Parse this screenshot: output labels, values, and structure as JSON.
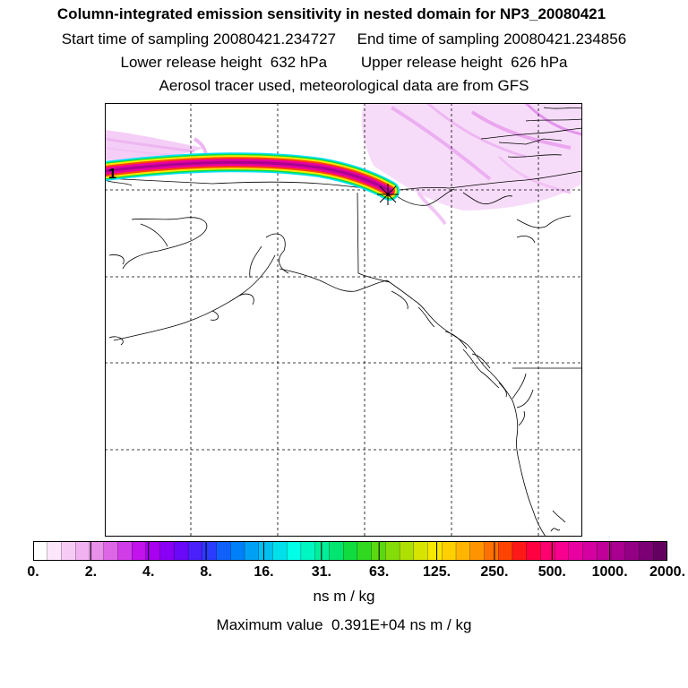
{
  "titles": {
    "line1": "Column-integrated emission sensitivity in nested domain for NP3_20080421",
    "line2": "Start time of sampling 20080421.234727     End time of sampling 20080421.234856",
    "line3": "Lower release height  632 hPa        Upper release height  626 hPa",
    "line4": "Aerosol tracer used, meteorological data are from GFS"
  },
  "map": {
    "label": "1",
    "release_marker": "asterisk-icon"
  },
  "colorbar": {
    "tick_labels": [
      "0.",
      "2.",
      "4.",
      "8.",
      "16.",
      "31.",
      "63.",
      "125.",
      "250.",
      "500.",
      "1000.",
      "2000."
    ],
    "colors": [
      "#ffffff",
      "#fbe6fb",
      "#f6ccf6",
      "#f0b2f0",
      "#e890ea",
      "#dd66e6",
      "#d13ce9",
      "#c213ec",
      "#a800f0",
      "#8a00f5",
      "#6a08f8",
      "#4a20fb",
      "#2a3cfd",
      "#1060fc",
      "#0080f8",
      "#00a0f4",
      "#00c0f0",
      "#00e0ea",
      "#00ffe6",
      "#00f6c0",
      "#00ee9a",
      "#00e470",
      "#10dc40",
      "#30d820",
      "#5ad810",
      "#84dc08",
      "#aee004",
      "#d6e400",
      "#f8e800",
      "#ffd000",
      "#ffb400",
      "#ff9400",
      "#ff7000",
      "#ff4400",
      "#ff1818",
      "#ff0040",
      "#ff0070",
      "#f80090",
      "#e800a0",
      "#d400a0",
      "#c00098",
      "#aa0090",
      "#940084",
      "#7c0074",
      "#640060"
    ]
  },
  "units": "ns m / kg",
  "max_value": "Maximum value  0.391E+04 ns m / kg"
}
